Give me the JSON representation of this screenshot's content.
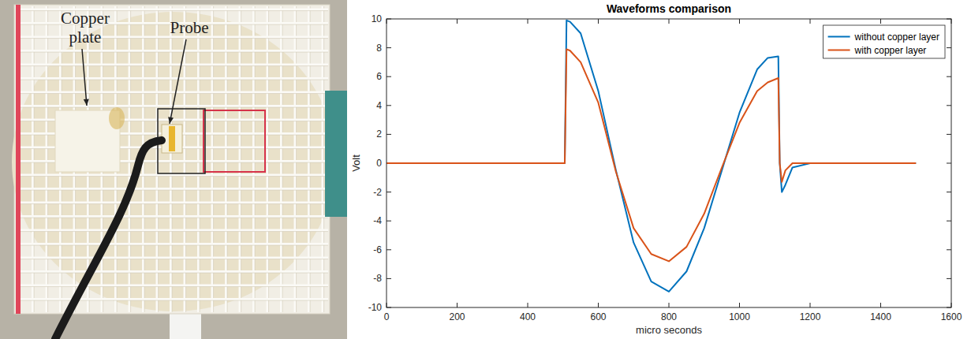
{
  "photo": {
    "labels": [
      "Copper plate",
      "Probe"
    ]
  },
  "chart_data": {
    "type": "line",
    "title": "Waveforms comparison",
    "x_label": "micro seconds",
    "y_label": "Volt",
    "x": [
      0,
      100,
      200,
      300,
      400,
      505,
      510,
      520,
      550,
      600,
      650,
      700,
      750,
      800,
      850,
      900,
      950,
      1000,
      1050,
      1080,
      1110,
      1114,
      1120,
      1130,
      1150,
      1200,
      1300,
      1400,
      1500
    ],
    "series": [
      {
        "name": "without copper layer",
        "color": "#0072bd",
        "values": [
          0,
          0,
          0,
          0,
          0,
          0,
          9.9,
          9.8,
          9.0,
          5.0,
          -0.5,
          -5.5,
          -8.2,
          -8.9,
          -7.5,
          -4.5,
          -0.5,
          3.5,
          6.5,
          7.3,
          7.4,
          0,
          -2.0,
          -1.5,
          -0.3,
          0,
          0,
          0,
          0
        ]
      },
      {
        "name": "with copper layer",
        "color": "#d95319",
        "values": [
          0,
          0,
          0,
          0,
          0,
          0,
          7.9,
          7.8,
          7.0,
          4.2,
          -0.6,
          -4.5,
          -6.3,
          -6.8,
          -5.8,
          -3.5,
          -0.3,
          2.8,
          5.0,
          5.6,
          5.9,
          0,
          -1.3,
          -0.5,
          0,
          0,
          0,
          0,
          0
        ]
      }
    ],
    "xlim": [
      0,
      1600
    ],
    "xticks": [
      0,
      200,
      400,
      600,
      800,
      1000,
      1200,
      1400,
      1600
    ],
    "ylim": [
      -10,
      10
    ],
    "yticks": [
      -10,
      -8,
      -6,
      -4,
      -2,
      0,
      2,
      4,
      6,
      8,
      10
    ],
    "grid": false,
    "legend": "northeast"
  }
}
